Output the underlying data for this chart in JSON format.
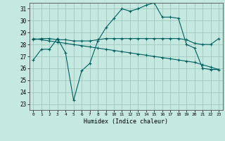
{
  "title": "",
  "xlabel": "Humidex (Indice chaleur)",
  "ylabel": "",
  "background_color": "#c5e8e0",
  "grid_color": "#a0c8be",
  "line_color": "#006060",
  "xlim": [
    -0.5,
    23.5
  ],
  "ylim": [
    22.5,
    31.5
  ],
  "yticks": [
    23,
    24,
    25,
    26,
    27,
    28,
    29,
    30,
    31
  ],
  "xticks": [
    0,
    1,
    2,
    3,
    4,
    5,
    6,
    7,
    8,
    9,
    10,
    11,
    12,
    13,
    14,
    15,
    16,
    17,
    18,
    19,
    20,
    21,
    22,
    23
  ],
  "line1_x": [
    0,
    1,
    2,
    3,
    4,
    5,
    6,
    7,
    8,
    9,
    10,
    11,
    12,
    13,
    14,
    15,
    16,
    17,
    18,
    19,
    20,
    21,
    22,
    23
  ],
  "line1_y": [
    26.7,
    27.6,
    27.6,
    28.5,
    27.3,
    23.3,
    25.8,
    26.4,
    28.3,
    29.4,
    30.2,
    31.0,
    30.8,
    31.0,
    31.3,
    31.5,
    30.3,
    30.3,
    30.2,
    28.0,
    27.7,
    26.0,
    25.9,
    25.9
  ],
  "line2_x": [
    0,
    1,
    2,
    3,
    4,
    5,
    6,
    7,
    8,
    9,
    10,
    11,
    12,
    13,
    14,
    15,
    16,
    17,
    18,
    19,
    20,
    21,
    22,
    23
  ],
  "line2_y": [
    28.4,
    28.5,
    28.5,
    28.4,
    28.4,
    28.3,
    28.3,
    28.3,
    28.4,
    28.5,
    28.5,
    28.5,
    28.5,
    28.5,
    28.5,
    28.5,
    28.5,
    28.5,
    28.5,
    28.4,
    28.1,
    28.0,
    28.0,
    28.5
  ],
  "line3_x": [
    0,
    1,
    2,
    3,
    4,
    5,
    6,
    7,
    8,
    9,
    10,
    11,
    12,
    13,
    14,
    15,
    16,
    17,
    18,
    19,
    20,
    21,
    22,
    23
  ],
  "line3_y": [
    28.5,
    28.4,
    28.3,
    28.2,
    28.1,
    28.0,
    27.9,
    27.8,
    27.7,
    27.6,
    27.5,
    27.4,
    27.3,
    27.2,
    27.1,
    27.0,
    26.9,
    26.8,
    26.7,
    26.6,
    26.5,
    26.3,
    26.1,
    25.9
  ]
}
